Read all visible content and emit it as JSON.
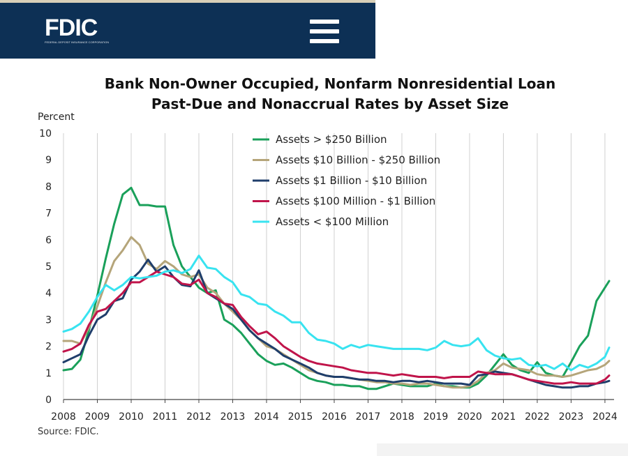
{
  "header": {
    "logo_text": "FDIC",
    "logo_subtext": "FEDERAL DEPOSIT INSURANCE CORPORATION",
    "menu_icon": "hamburger-menu-icon",
    "background_color": "#0d3055"
  },
  "chart_data": {
    "type": "line",
    "title": "Bank Non-Owner Occupied, Nonfarm Nonresidential Loan",
    "subtitle": "Past-Due and Nonaccrual Rates by Asset Size",
    "ylabel": "Percent",
    "xlabel": "",
    "source": "Source: FDIC.",
    "xlim": [
      2008,
      2024.125
    ],
    "ylim": [
      0,
      10
    ],
    "x_ticks": [
      "2008",
      "2009",
      "2010",
      "2011",
      "2012",
      "2013",
      "2014",
      "2015",
      "2016",
      "2017",
      "2018",
      "2019",
      "2020",
      "2021",
      "2022",
      "2023",
      "2024"
    ],
    "y_ticks": [
      "0",
      "1",
      "2",
      "3",
      "4",
      "5",
      "6",
      "7",
      "8",
      "9",
      "10"
    ],
    "grid": "vertical",
    "legend_position": "top-center",
    "series": [
      {
        "name": "Assets > $250 Billion",
        "color": "#1aa05a",
        "x": [
          2008,
          2008.25,
          2008.5,
          2008.75,
          2009,
          2009.25,
          2009.5,
          2009.75,
          2010,
          2010.25,
          2010.5,
          2010.75,
          2011,
          2011.25,
          2011.5,
          2011.75,
          2012,
          2012.25,
          2012.5,
          2012.75,
          2013,
          2013.25,
          2013.5,
          2013.75,
          2014,
          2014.25,
          2014.5,
          2014.75,
          2015,
          2015.25,
          2015.5,
          2015.75,
          2016,
          2016.25,
          2016.5,
          2016.75,
          2017,
          2017.25,
          2017.5,
          2017.75,
          2018,
          2018.25,
          2018.5,
          2018.75,
          2019,
          2019.25,
          2019.5,
          2019.75,
          2020,
          2020.25,
          2020.5,
          2020.75,
          2021,
          2021.25,
          2021.5,
          2021.75,
          2022,
          2022.25,
          2022.5,
          2022.75,
          2023,
          2023.25,
          2023.5,
          2023.75,
          2024,
          2024.125
        ],
        "values": [
          1.1,
          1.15,
          1.5,
          2.6,
          3.9,
          5.3,
          6.6,
          7.7,
          7.95,
          7.3,
          7.3,
          7.25,
          7.25,
          5.8,
          5.0,
          4.6,
          4.2,
          4.0,
          4.1,
          3.0,
          2.8,
          2.5,
          2.1,
          1.7,
          1.45,
          1.3,
          1.35,
          1.2,
          1.0,
          0.8,
          0.7,
          0.65,
          0.55,
          0.55,
          0.5,
          0.5,
          0.4,
          0.4,
          0.5,
          0.6,
          0.55,
          0.5,
          0.5,
          0.5,
          0.6,
          0.5,
          0.5,
          0.45,
          0.45,
          0.6,
          0.9,
          1.3,
          1.7,
          1.3,
          1.1,
          1.0,
          1.4,
          1.0,
          0.9,
          0.85,
          1.4,
          2.0,
          2.4,
          3.7,
          4.2,
          4.45
        ]
      },
      {
        "name": "Assets $10 Billion - $250 Billion",
        "color": "#b5a57a",
        "x": [
          2008,
          2008.25,
          2008.5,
          2008.75,
          2009,
          2009.25,
          2009.5,
          2009.75,
          2010,
          2010.25,
          2010.5,
          2010.75,
          2011,
          2011.25,
          2011.5,
          2011.75,
          2012,
          2012.25,
          2012.5,
          2012.75,
          2013,
          2013.25,
          2013.5,
          2013.75,
          2014,
          2014.25,
          2014.5,
          2014.75,
          2015,
          2015.25,
          2015.5,
          2015.75,
          2016,
          2016.25,
          2016.5,
          2016.75,
          2017,
          2017.25,
          2017.5,
          2017.75,
          2018,
          2018.25,
          2018.5,
          2018.75,
          2019,
          2019.25,
          2019.5,
          2019.75,
          2020,
          2020.25,
          2020.5,
          2020.75,
          2021,
          2021.25,
          2021.5,
          2021.75,
          2022,
          2022.25,
          2022.5,
          2022.75,
          2023,
          2023.25,
          2023.5,
          2023.75,
          2024,
          2024.125
        ],
        "values": [
          2.2,
          2.2,
          2.1,
          2.7,
          3.5,
          4.4,
          5.2,
          5.6,
          6.1,
          5.8,
          5.1,
          4.9,
          5.2,
          5.0,
          4.7,
          4.6,
          4.7,
          4.2,
          4.0,
          3.6,
          3.3,
          3.0,
          2.6,
          2.3,
          2.0,
          1.9,
          1.7,
          1.5,
          1.3,
          1.1,
          1.0,
          0.9,
          0.85,
          0.85,
          0.8,
          0.75,
          0.7,
          0.65,
          0.65,
          0.6,
          0.6,
          0.55,
          0.6,
          0.6,
          0.55,
          0.5,
          0.45,
          0.45,
          0.5,
          0.7,
          1.0,
          1.1,
          1.35,
          1.2,
          1.15,
          1.1,
          0.95,
          0.9,
          0.9,
          0.85,
          0.9,
          1.0,
          1.1,
          1.15,
          1.3,
          1.45
        ]
      },
      {
        "name": "Assets $1 Billion - $10 Billion",
        "color": "#1f3e6b",
        "x": [
          2008,
          2008.25,
          2008.5,
          2008.75,
          2009,
          2009.25,
          2009.5,
          2009.75,
          2010,
          2010.25,
          2010.5,
          2010.75,
          2011,
          2011.25,
          2011.5,
          2011.75,
          2012,
          2012.25,
          2012.5,
          2012.75,
          2013,
          2013.25,
          2013.5,
          2013.75,
          2014,
          2014.25,
          2014.5,
          2014.75,
          2015,
          2015.25,
          2015.5,
          2015.75,
          2016,
          2016.25,
          2016.5,
          2016.75,
          2017,
          2017.25,
          2017.5,
          2017.75,
          2018,
          2018.25,
          2018.5,
          2018.75,
          2019,
          2019.25,
          2019.5,
          2019.75,
          2020,
          2020.25,
          2020.5,
          2020.75,
          2021,
          2021.25,
          2021.5,
          2021.75,
          2022,
          2022.25,
          2022.5,
          2022.75,
          2023,
          2023.25,
          2023.5,
          2023.75,
          2024,
          2024.125
        ],
        "values": [
          1.4,
          1.55,
          1.7,
          2.4,
          3.0,
          3.2,
          3.7,
          3.8,
          4.5,
          4.8,
          5.25,
          4.8,
          5.0,
          4.6,
          4.3,
          4.25,
          4.85,
          4.0,
          3.8,
          3.6,
          3.4,
          3.0,
          2.6,
          2.3,
          2.1,
          1.9,
          1.65,
          1.5,
          1.35,
          1.2,
          1.0,
          0.9,
          0.85,
          0.85,
          0.8,
          0.75,
          0.75,
          0.7,
          0.7,
          0.65,
          0.7,
          0.7,
          0.65,
          0.7,
          0.65,
          0.6,
          0.6,
          0.6,
          0.55,
          0.9,
          0.95,
          1.05,
          1.0,
          0.95,
          0.85,
          0.75,
          0.65,
          0.55,
          0.5,
          0.45,
          0.45,
          0.5,
          0.5,
          0.6,
          0.65,
          0.7
        ]
      },
      {
        "name": "Assets $100 Million - $1 Billion",
        "color": "#c0144a",
        "x": [
          2008,
          2008.25,
          2008.5,
          2008.75,
          2009,
          2009.25,
          2009.5,
          2009.75,
          2010,
          2010.25,
          2010.5,
          2010.75,
          2011,
          2011.25,
          2011.5,
          2011.75,
          2012,
          2012.25,
          2012.5,
          2012.75,
          2013,
          2013.25,
          2013.5,
          2013.75,
          2014,
          2014.25,
          2014.5,
          2014.75,
          2015,
          2015.25,
          2015.5,
          2015.75,
          2016,
          2016.25,
          2016.5,
          2016.75,
          2017,
          2017.25,
          2017.5,
          2017.75,
          2018,
          2018.25,
          2018.5,
          2018.75,
          2019,
          2019.25,
          2019.5,
          2019.75,
          2020,
          2020.25,
          2020.5,
          2020.75,
          2021,
          2021.25,
          2021.5,
          2021.75,
          2022,
          2022.25,
          2022.5,
          2022.75,
          2023,
          2023.25,
          2023.5,
          2023.75,
          2024,
          2024.125
        ],
        "values": [
          1.8,
          1.9,
          2.1,
          2.8,
          3.3,
          3.4,
          3.7,
          4.0,
          4.4,
          4.4,
          4.6,
          4.8,
          4.7,
          4.6,
          4.35,
          4.3,
          4.5,
          4.0,
          3.85,
          3.6,
          3.55,
          3.1,
          2.75,
          2.45,
          2.55,
          2.3,
          2.0,
          1.8,
          1.6,
          1.45,
          1.35,
          1.3,
          1.25,
          1.2,
          1.1,
          1.05,
          1.0,
          1.0,
          0.95,
          0.9,
          0.95,
          0.9,
          0.85,
          0.85,
          0.85,
          0.8,
          0.85,
          0.85,
          0.85,
          1.05,
          1.0,
          0.95,
          0.95,
          0.95,
          0.85,
          0.75,
          0.7,
          0.65,
          0.6,
          0.6,
          0.65,
          0.6,
          0.6,
          0.6,
          0.75,
          0.9
        ]
      },
      {
        "name": "Assets < $100 Million",
        "color": "#38e3f0",
        "x": [
          2008,
          2008.25,
          2008.5,
          2008.75,
          2009,
          2009.25,
          2009.5,
          2009.75,
          2010,
          2010.25,
          2010.5,
          2010.75,
          2011,
          2011.25,
          2011.5,
          2011.75,
          2012,
          2012.25,
          2012.5,
          2012.75,
          2013,
          2013.25,
          2013.5,
          2013.75,
          2014,
          2014.25,
          2014.5,
          2014.75,
          2015,
          2015.25,
          2015.5,
          2015.75,
          2016,
          2016.25,
          2016.5,
          2016.75,
          2017,
          2017.25,
          2017.5,
          2017.75,
          2018,
          2018.25,
          2018.5,
          2018.75,
          2019,
          2019.25,
          2019.5,
          2019.75,
          2020,
          2020.25,
          2020.5,
          2020.75,
          2021,
          2021.25,
          2021.5,
          2021.75,
          2022,
          2022.25,
          2022.5,
          2022.75,
          2023,
          2023.25,
          2023.5,
          2023.75,
          2024,
          2024.125
        ],
        "values": [
          2.55,
          2.65,
          2.85,
          3.3,
          3.85,
          4.3,
          4.1,
          4.3,
          4.6,
          4.55,
          4.6,
          4.65,
          4.8,
          4.85,
          4.75,
          4.9,
          5.4,
          4.95,
          4.9,
          4.6,
          4.4,
          3.95,
          3.85,
          3.6,
          3.55,
          3.3,
          3.15,
          2.9,
          2.9,
          2.5,
          2.25,
          2.2,
          2.1,
          1.9,
          2.05,
          1.95,
          2.05,
          2.0,
          1.95,
          1.9,
          1.9,
          1.9,
          1.9,
          1.85,
          1.95,
          2.2,
          2.05,
          2.0,
          2.05,
          2.3,
          1.85,
          1.65,
          1.55,
          1.5,
          1.55,
          1.3,
          1.25,
          1.3,
          1.15,
          1.35,
          1.1,
          1.3,
          1.2,
          1.35,
          1.6,
          1.95
        ]
      }
    ]
  }
}
